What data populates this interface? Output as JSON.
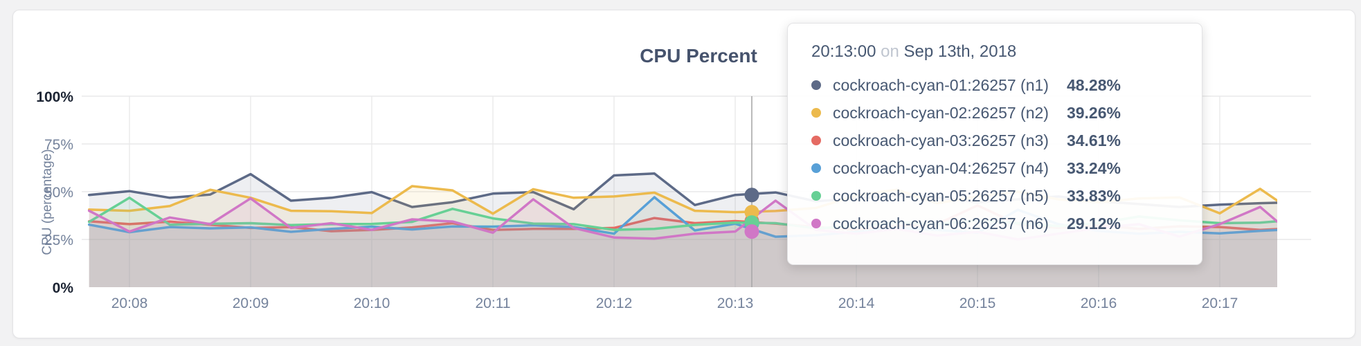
{
  "page": {
    "background_color": "#f2f2f3",
    "card_background": "#ffffff"
  },
  "chart_data": {
    "type": "line",
    "title": "CPU Percent",
    "ylabel": "CPU (percentage)",
    "xlabel": "",
    "ylim": [
      0,
      100
    ],
    "grid": true,
    "legend": "none",
    "y_ticks": [
      {
        "value": 0,
        "label": "0%"
      },
      {
        "value": 25,
        "label": "25%"
      },
      {
        "value": 50,
        "label": "50%"
      },
      {
        "value": 75,
        "label": "75%"
      },
      {
        "value": 100,
        "label": "100%"
      }
    ],
    "x_ticks": [
      "20:08",
      "20:09",
      "20:10",
      "20:11",
      "20:12",
      "20:13",
      "20:14",
      "20:15",
      "20:16",
      "20:17"
    ],
    "x_start_label": "20:07:40",
    "point_interval_seconds": 20,
    "hover_index": 16,
    "series": [
      {
        "name": "cockroach-cyan-01:26257 (n1)",
        "node": "n1",
        "color": "#5d6a87",
        "values": [
          48.3,
          50.3,
          46.8,
          48.5,
          59.2,
          45.3,
          46.8,
          49.8,
          42.0,
          44.5,
          49.0,
          49.8,
          40.8,
          58.5,
          59.5,
          43.0,
          48.28,
          49.6,
          45.0,
          46.5,
          48.0,
          47.0,
          44.5,
          46.0,
          47.5,
          45.0,
          43.5,
          42.0,
          43.2,
          44.0,
          44.5
        ]
      },
      {
        "name": "cockroach-cyan-02:26257 (n2)",
        "node": "n2",
        "color": "#ecba4d",
        "values": [
          40.6,
          40.0,
          42.5,
          51.0,
          46.8,
          40.0,
          39.8,
          38.8,
          52.9,
          50.7,
          38.5,
          51.3,
          46.8,
          47.5,
          49.5,
          40.0,
          39.26,
          39.9,
          41.5,
          48.0,
          51.0,
          44.0,
          47.5,
          50.0,
          46.0,
          44.5,
          46.5,
          47.0,
          38.7,
          51.5,
          37.0
        ]
      },
      {
        "name": "cockroach-cyan-03:26257 (n3)",
        "node": "n3",
        "color": "#e56b63",
        "values": [
          34.5,
          33.0,
          34.3,
          32.7,
          31.0,
          31.5,
          29.3,
          30.0,
          31.3,
          33.5,
          30.0,
          30.5,
          30.5,
          31.0,
          36.2,
          33.5,
          34.61,
          33.3,
          31.5,
          30.0,
          32.0,
          33.0,
          42.8,
          33.0,
          31.0,
          32.5,
          30.5,
          31.9,
          31.5,
          30.0,
          31.0
        ]
      },
      {
        "name": "cockroach-cyan-04:26257 (n4)",
        "node": "n4",
        "color": "#58a0d7",
        "values": [
          32.7,
          28.8,
          31.5,
          30.8,
          31.3,
          29.0,
          30.5,
          31.7,
          30.2,
          31.8,
          31.7,
          32.4,
          31.5,
          28.0,
          47.1,
          29.7,
          33.24,
          26.4,
          27.2,
          29.0,
          31.0,
          30.0,
          28.5,
          40.5,
          33.0,
          29.5,
          28.0,
          29.0,
          28.2,
          29.5,
          30.5
        ]
      },
      {
        "name": "cockroach-cyan-05:26257 (n5)",
        "node": "n5",
        "color": "#67d095",
        "values": [
          34.2,
          46.8,
          32.7,
          33.2,
          33.5,
          32.5,
          33.0,
          33.1,
          34.2,
          41.0,
          36.0,
          33.3,
          33.0,
          30.0,
          30.5,
          32.6,
          33.83,
          33.5,
          30.8,
          32.0,
          34.0,
          33.0,
          35.0,
          33.5,
          32.0,
          33.5,
          37.0,
          35.0,
          33.5,
          33.8,
          35.5
        ]
      },
      {
        "name": "cockroach-cyan-06:26257 (n6)",
        "node": "n6",
        "color": "#d077c6",
        "values": [
          40.0,
          29.1,
          36.5,
          33.0,
          46.5,
          31.0,
          33.5,
          30.0,
          35.5,
          34.4,
          28.5,
          46.0,
          31.0,
          26.0,
          25.4,
          28.0,
          29.12,
          45.3,
          30.0,
          28.0,
          30.5,
          27.0,
          29.0,
          25.0,
          28.0,
          31.0,
          33.0,
          26.5,
          33.0,
          42.0,
          24.0
        ]
      }
    ],
    "colors": {
      "grid": "#e9e9ea",
      "hover_line": "#a8a8a8",
      "axis_text": "#75839c",
      "axis_text_extreme": "#1c2433",
      "title_text": "#46536d"
    }
  },
  "tooltip": {
    "time": "20:13:00",
    "separator": "on",
    "date": "Sep 13th, 2018",
    "rows": [
      {
        "name": "cockroach-cyan-01:26257 (n1)",
        "value": "48.28%",
        "color": "#5d6a87"
      },
      {
        "name": "cockroach-cyan-02:26257 (n2)",
        "value": "39.26%",
        "color": "#ecba4d"
      },
      {
        "name": "cockroach-cyan-03:26257 (n3)",
        "value": "34.61%",
        "color": "#e56b63"
      },
      {
        "name": "cockroach-cyan-04:26257 (n4)",
        "value": "33.24%",
        "color": "#58a0d7"
      },
      {
        "name": "cockroach-cyan-05:26257 (n5)",
        "value": "33.83%",
        "color": "#67d095"
      },
      {
        "name": "cockroach-cyan-06:26257 (n6)",
        "value": "29.12%",
        "color": "#d077c6"
      }
    ]
  }
}
